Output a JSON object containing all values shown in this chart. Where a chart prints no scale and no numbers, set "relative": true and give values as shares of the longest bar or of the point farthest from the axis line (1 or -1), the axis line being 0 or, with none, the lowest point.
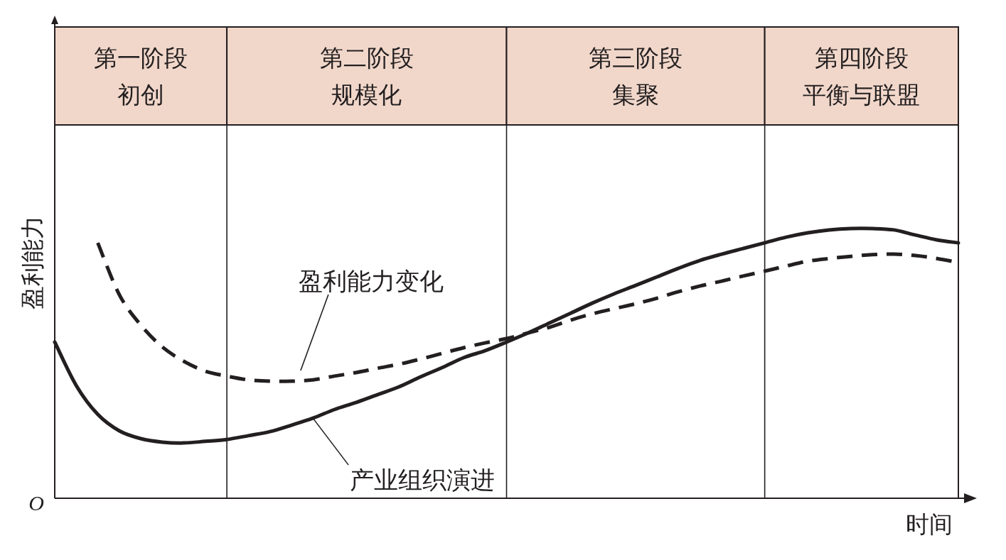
{
  "chart_data": {
    "type": "line",
    "relative": true,
    "xlabel": "时间",
    "ylabel": "盈利能力",
    "grid": "x",
    "categories": [
      null,
      null,
      null,
      null,
      null,
      null,
      null,
      null,
      null,
      null,
      null,
      null,
      null,
      null,
      null,
      null,
      null,
      null,
      null,
      null,
      null,
      null,
      null,
      null,
      null,
      null,
      null,
      null,
      null,
      null,
      null,
      null,
      null,
      null,
      null,
      null,
      null,
      null,
      null,
      null,
      null,
      null,
      null
    ],
    "series": [
      {
        "name": "产业组织演进",
        "color": "#231f20",
        "line_style": "solid",
        "values": [
          0.579,
          0.418,
          0.311,
          0.25,
          0.221,
          0.208,
          0.205,
          0.211,
          0.218,
          0.232,
          0.247,
          0.271,
          0.297,
          0.329,
          0.355,
          0.384,
          0.413,
          0.45,
          0.484,
          0.521,
          0.547,
          0.579,
          0.613,
          0.65,
          0.687,
          0.724,
          0.758,
          0.789,
          0.821,
          0.853,
          0.882,
          0.905,
          0.926,
          0.947,
          0.968,
          0.984,
          0.995,
          1,
          1,
          0.995,
          0.976,
          0.958,
          0.947
        ]
      },
      {
        "name": "盈利能力变化",
        "color": "#231f20",
        "line_style": "dashed",
        "values": [
          null,
          null,
          0.947,
          0.755,
          0.642,
          0.561,
          0.508,
          0.471,
          0.453,
          0.439,
          0.434,
          0.434,
          0.439,
          0.453,
          0.466,
          0.482,
          0.497,
          0.516,
          0.537,
          0.558,
          0.576,
          0.592,
          0.613,
          0.634,
          0.661,
          0.684,
          0.703,
          0.721,
          0.742,
          0.766,
          0.787,
          0.805,
          0.824,
          0.842,
          0.861,
          0.879,
          0.889,
          0.897,
          0.903,
          0.905,
          0.9,
          0.889,
          0.874
        ]
      }
    ],
    "annotations": [
      "第一阶段",
      "初创",
      "第二阶段",
      "规模化",
      "第三阶段",
      "集聚",
      "第四阶段",
      "平衡与联盟",
      "O"
    ]
  }
}
